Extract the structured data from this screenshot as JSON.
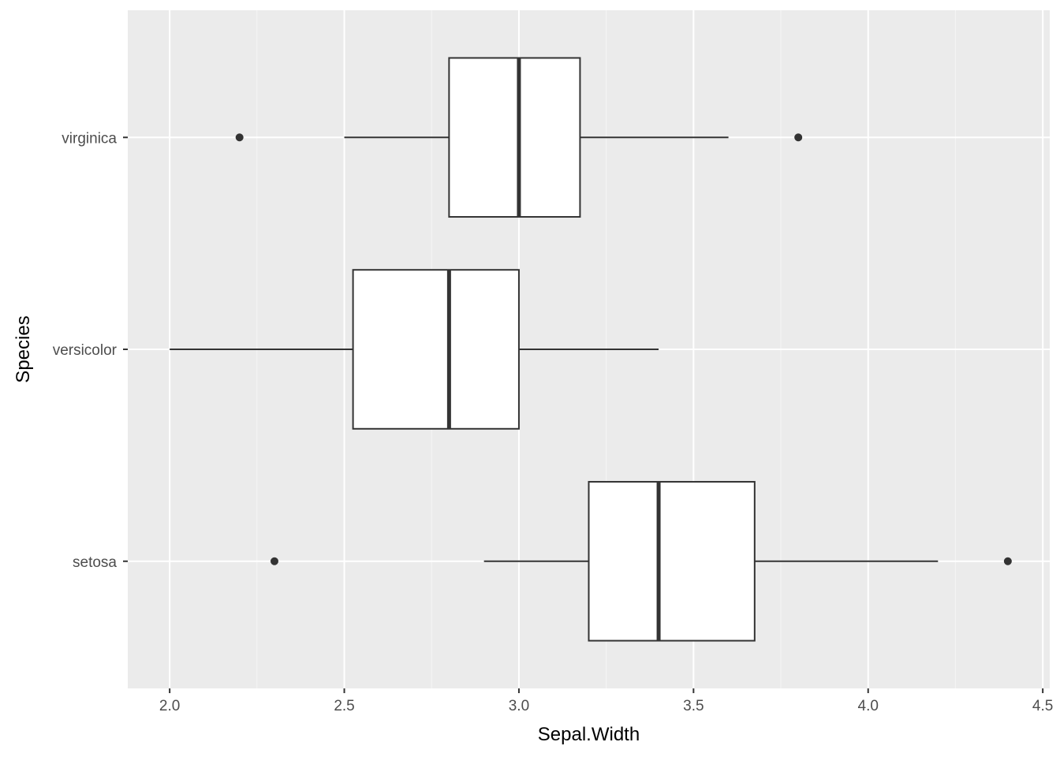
{
  "chart_data": {
    "type": "boxplot",
    "orientation": "horizontal",
    "xlabel": "Sepal.Width",
    "ylabel": "Species",
    "xlim": [
      1.88,
      4.52
    ],
    "x_ticks": [
      2.0,
      2.5,
      3.0,
      3.5,
      4.0,
      4.5
    ],
    "x_tick_labels": [
      "2.0",
      "2.5",
      "3.0",
      "3.5",
      "4.0",
      "4.5"
    ],
    "categories": [
      "setosa",
      "versicolor",
      "virginica"
    ],
    "boxes": [
      {
        "category": "setosa",
        "whisker_low": 2.9,
        "q1": 3.2,
        "median": 3.4,
        "q3": 3.675,
        "whisker_high": 4.2,
        "outliers": [
          2.3,
          4.4
        ]
      },
      {
        "category": "versicolor",
        "whisker_low": 2.0,
        "q1": 2.525,
        "median": 2.8,
        "q3": 3.0,
        "whisker_high": 3.4,
        "outliers": []
      },
      {
        "category": "virginica",
        "whisker_low": 2.5,
        "q1": 2.8,
        "median": 3.0,
        "q3": 3.175,
        "whisker_high": 3.6,
        "outliers": [
          2.2,
          3.8
        ]
      }
    ],
    "grid": true,
    "colors": {
      "panel_background": "#ebebeb",
      "grid_major": "#ffffff",
      "box_fill": "#ffffff",
      "box_stroke": "#333333"
    }
  }
}
